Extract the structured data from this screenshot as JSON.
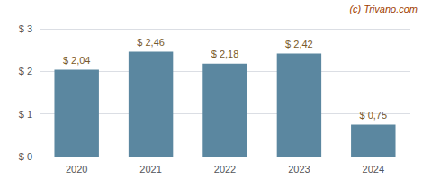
{
  "chart_data": {
    "type": "bar",
    "categories": [
      "2020",
      "2021",
      "2022",
      "2023",
      "2024"
    ],
    "values": [
      2.04,
      2.46,
      2.18,
      2.42,
      0.75
    ],
    "value_labels": [
      "$ 2,04",
      "$ 2,46",
      "$ 2,18",
      "$ 2,42",
      "$ 0,75"
    ],
    "color": "#5b87a0",
    "ylim": [
      0,
      3.0
    ],
    "yticks": [
      {
        "value": 0,
        "label": "$ 0"
      },
      {
        "value": 1,
        "label": "$ 1"
      },
      {
        "value": 2,
        "label": "$ 2"
      },
      {
        "value": 3,
        "label": "$ 3"
      }
    ],
    "grid": true,
    "annotations": [
      "(c) Trivano.com"
    ]
  }
}
